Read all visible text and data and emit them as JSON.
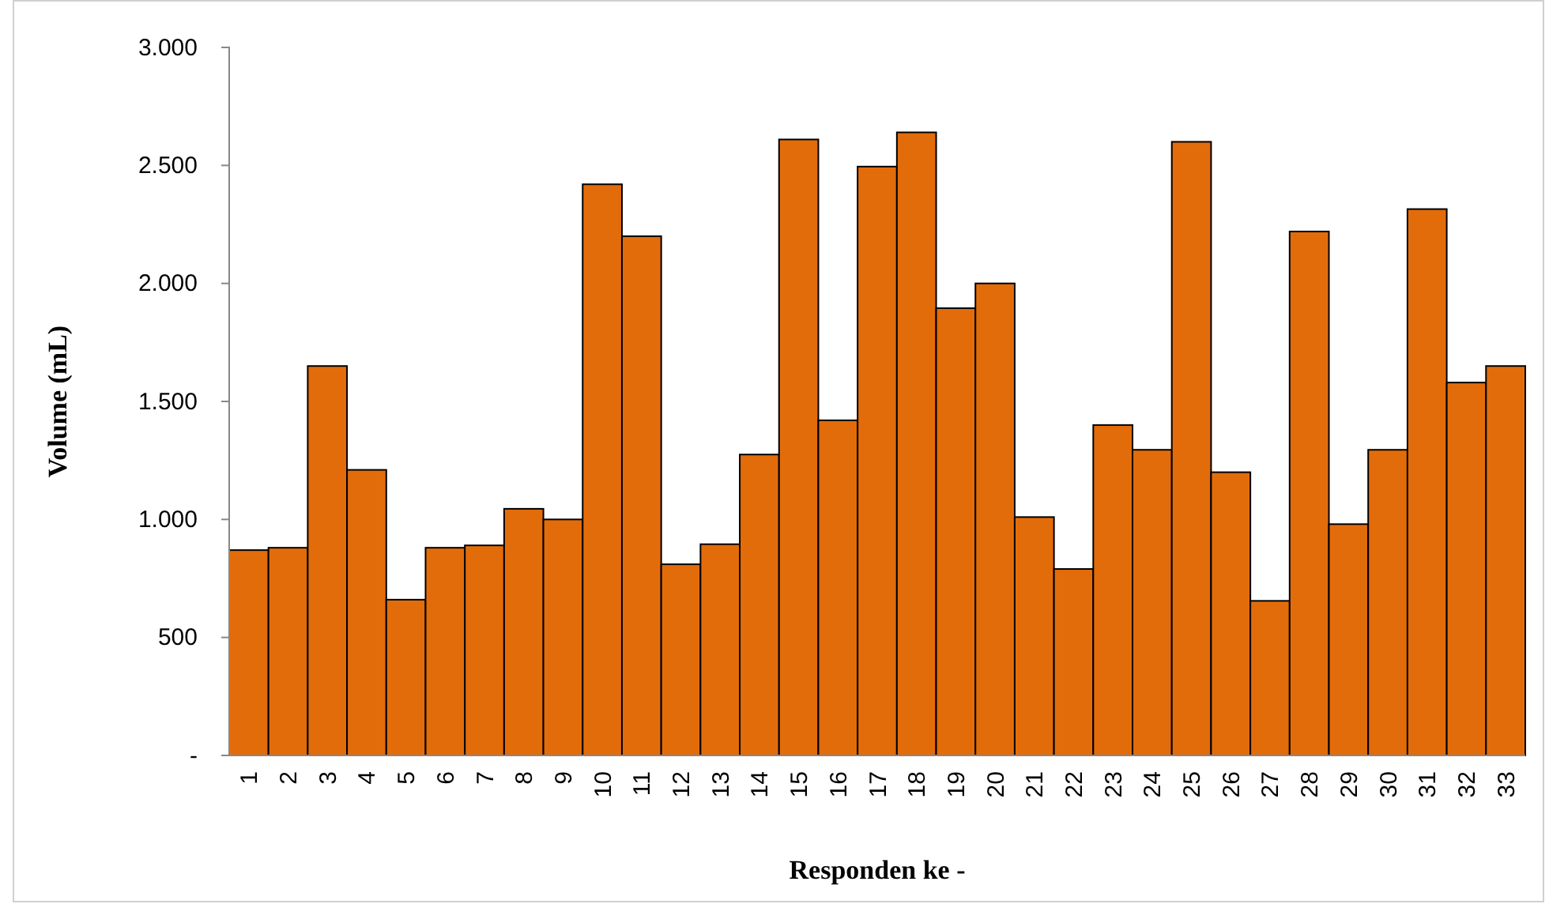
{
  "chart_data": {
    "type": "bar",
    "xlabel": "Responden ke -",
    "ylabel": "Volume (mL)",
    "categories": [
      "1",
      "2",
      "3",
      "4",
      "5",
      "6",
      "7",
      "8",
      "9",
      "10",
      "11",
      "12",
      "13",
      "14",
      "15",
      "16",
      "17",
      "18",
      "19",
      "20",
      "21",
      "22",
      "23",
      "24",
      "25",
      "26",
      "27",
      "28",
      "29",
      "30",
      "31",
      "32",
      "33"
    ],
    "values": [
      870,
      880,
      1650,
      1210,
      660,
      880,
      890,
      1045,
      1000,
      2420,
      2200,
      810,
      895,
      1275,
      2610,
      1420,
      2495,
      2640,
      1895,
      2000,
      1010,
      790,
      1400,
      1295,
      2600,
      1200,
      655,
      2220,
      980,
      1295,
      2315,
      1580,
      1650
    ],
    "color": "#e36c0a",
    "ylim": [
      0,
      3000
    ],
    "yticks": [
      {
        "value": 0,
        "label": "-"
      },
      500,
      {
        "value": 1000,
        "label": "1.000"
      },
      {
        "value": 1500,
        "label": "1.500"
      },
      {
        "value": 2000,
        "label": "2.000"
      },
      {
        "value": 2500,
        "label": "2.500"
      },
      {
        "value": 3000,
        "label": "3.000"
      }
    ],
    "grid": false
  }
}
